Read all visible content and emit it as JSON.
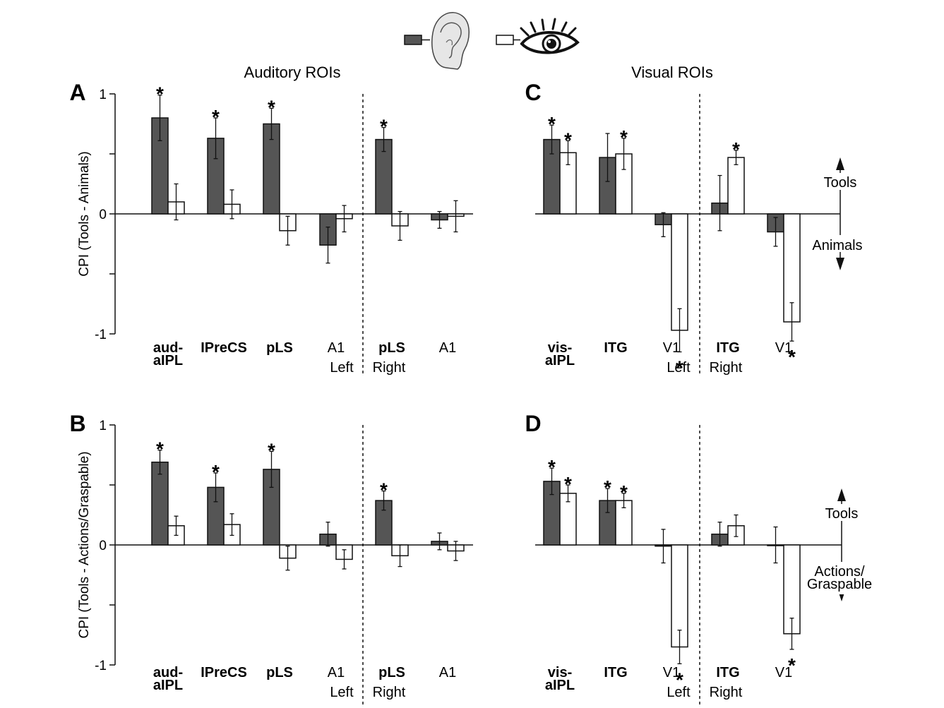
{
  "legend": {
    "items": [
      {
        "name": "auditory",
        "fill": "#555555",
        "icon": "ear-icon"
      },
      {
        "name": "visual",
        "fill": "#ffffff",
        "icon": "eye-icon"
      }
    ]
  },
  "headings": {
    "auditory": "Auditory ROIs",
    "visual": "Visual ROIs"
  },
  "colors": {
    "dark_bar": "#555555",
    "light_bar": "#ffffff",
    "stroke": "#111111"
  },
  "direction_labels": {
    "top": {
      "up": "Tools",
      "down": "Animals"
    },
    "bottom": {
      "up": "Tools",
      "down_line1": "Actions/",
      "down_line2": "Graspable"
    }
  },
  "chart_data": [
    {
      "panel": "A",
      "type": "bar",
      "ylabel": "CPI (Tools - Animals)",
      "ylim": [
        -1,
        1
      ],
      "yticks": [
        "1",
        "0",
        "-1"
      ],
      "categories": [
        {
          "line1": "aud-",
          "line2": "aIPL",
          "bold": true
        },
        {
          "line1": "IPreCS",
          "line2": "",
          "bold": true
        },
        {
          "line1": "pLS",
          "line2": "",
          "bold": true
        },
        {
          "line1": "A1",
          "line2": "",
          "bold": false
        },
        {
          "line1": "pLS",
          "line2": "",
          "bold": true
        },
        {
          "line1": "A1",
          "line2": "",
          "bold": false
        }
      ],
      "hemispheres": [
        "Left",
        "Right"
      ],
      "series": [
        {
          "values": [
            0.8,
            0.63,
            0.75,
            -0.26,
            0.62,
            -0.05
          ],
          "errors": [
            0.19,
            0.17,
            0.13,
            0.15,
            0.1,
            0.07
          ],
          "sig": [
            true,
            true,
            true,
            false,
            true,
            false
          ]
        },
        {
          "values": [
            0.1,
            0.08,
            -0.14,
            -0.04,
            -0.1,
            -0.02
          ],
          "errors": [
            0.15,
            0.12,
            0.12,
            0.11,
            0.12,
            0.13
          ],
          "sig": [
            false,
            false,
            false,
            false,
            false,
            false
          ]
        }
      ]
    },
    {
      "panel": "B",
      "type": "bar",
      "ylabel": "CPI (Tools - Actions/Graspable)",
      "ylim": [
        -1,
        1
      ],
      "yticks": [
        "1",
        "0",
        "-1"
      ],
      "categories": [
        {
          "line1": "aud-",
          "line2": "aIPL",
          "bold": true
        },
        {
          "line1": "IPreCS",
          "line2": "",
          "bold": true
        },
        {
          "line1": "pLS",
          "line2": "",
          "bold": true
        },
        {
          "line1": "A1",
          "line2": "",
          "bold": false
        },
        {
          "line1": "pLS",
          "line2": "",
          "bold": true
        },
        {
          "line1": "A1",
          "line2": "",
          "bold": false
        }
      ],
      "hemispheres": [
        "Left",
        "Right"
      ],
      "series": [
        {
          "values": [
            0.69,
            0.48,
            0.63,
            0.09,
            0.37,
            0.03
          ],
          "errors": [
            0.1,
            0.12,
            0.15,
            0.1,
            0.08,
            0.07
          ],
          "sig": [
            true,
            true,
            true,
            false,
            true,
            false
          ]
        },
        {
          "values": [
            0.16,
            0.17,
            -0.11,
            -0.12,
            -0.09,
            -0.05
          ],
          "errors": [
            0.08,
            0.09,
            0.1,
            0.08,
            0.09,
            0.08
          ],
          "sig": [
            false,
            false,
            false,
            false,
            false,
            false
          ]
        }
      ]
    },
    {
      "panel": "C",
      "type": "bar",
      "ylim": [
        -1,
        1
      ],
      "categories": [
        {
          "line1": "vis-",
          "line2": "aIPL",
          "bold": true
        },
        {
          "line1": "ITG",
          "line2": "",
          "bold": true
        },
        {
          "line1": "V1",
          "line2": "",
          "bold": false
        },
        {
          "line1": "ITG",
          "line2": "",
          "bold": true
        },
        {
          "line1": "V1",
          "line2": "",
          "bold": false
        }
      ],
      "hemispheres": [
        "Left",
        "Right"
      ],
      "series": [
        {
          "values": [
            0.62,
            0.47,
            -0.09,
            0.09,
            -0.15
          ],
          "errors": [
            0.12,
            0.2,
            0.1,
            0.23,
            0.12
          ],
          "sig": [
            true,
            false,
            false,
            false,
            false
          ]
        },
        {
          "values": [
            0.51,
            0.5,
            -0.97,
            0.47,
            -0.9
          ],
          "errors": [
            0.1,
            0.13,
            0.18,
            0.06,
            0.16
          ],
          "sig": [
            true,
            true,
            true,
            true,
            true
          ]
        }
      ]
    },
    {
      "panel": "D",
      "type": "bar",
      "ylim": [
        -1,
        1
      ],
      "categories": [
        {
          "line1": "vis-",
          "line2": "aIPL",
          "bold": true
        },
        {
          "line1": "ITG",
          "line2": "",
          "bold": true
        },
        {
          "line1": "V1",
          "line2": "",
          "bold": false
        },
        {
          "line1": "ITG",
          "line2": "",
          "bold": true
        },
        {
          "line1": "V1",
          "line2": "",
          "bold": false
        }
      ],
      "hemispheres": [
        "Left",
        "Right"
      ],
      "series": [
        {
          "values": [
            0.53,
            0.37,
            -0.01,
            0.09,
            0.0
          ],
          "errors": [
            0.11,
            0.1,
            0.14,
            0.1,
            0.15
          ],
          "sig": [
            true,
            true,
            false,
            false,
            false
          ]
        },
        {
          "values": [
            0.43,
            0.37,
            -0.85,
            0.16,
            -0.74
          ],
          "errors": [
            0.07,
            0.06,
            0.14,
            0.09,
            0.13
          ],
          "sig": [
            true,
            true,
            true,
            false,
            true
          ]
        }
      ]
    }
  ]
}
